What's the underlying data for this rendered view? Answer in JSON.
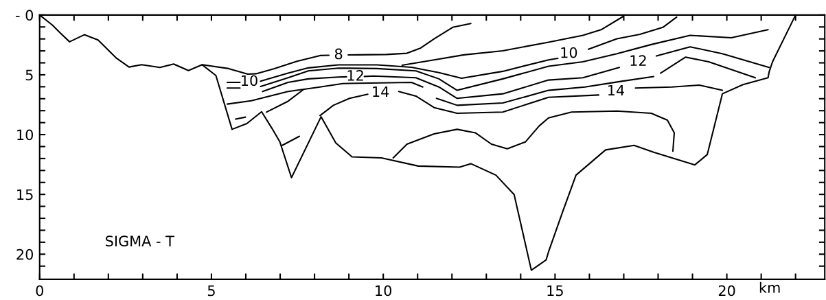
{
  "chart_data": {
    "type": "line",
    "xlabel": "km",
    "xlim": [
      0,
      22.85
    ],
    "ylim": [
      22.1,
      0
    ],
    "xticks": [
      0,
      {
        "value": 1,
        "label": null
      },
      {
        "value": 2,
        "label": null
      },
      {
        "value": 3,
        "label": null
      },
      {
        "value": 4,
        "label": null
      },
      5,
      {
        "value": 6,
        "label": null
      },
      {
        "value": 7,
        "label": null
      },
      {
        "value": 8,
        "label": null
      },
      {
        "value": 9,
        "label": null
      },
      10,
      {
        "value": 11,
        "label": null
      },
      {
        "value": 12,
        "label": null
      },
      {
        "value": 13,
        "label": null
      },
      {
        "value": 14,
        "label": null
      },
      15,
      {
        "value": 16,
        "label": null
      },
      {
        "value": 17,
        "label": null
      },
      {
        "value": 18,
        "label": null
      },
      {
        "value": 19,
        "label": null
      },
      20,
      {
        "value": 21,
        "label": null
      },
      {
        "value": 22,
        "label": null
      }
    ],
    "yticks": [
      {
        "value": 0,
        "label": "- 0"
      },
      {
        "value": 1,
        "label": null
      },
      {
        "value": 2,
        "label": null
      },
      {
        "value": 3,
        "label": null
      },
      {
        "value": 4,
        "label": null
      },
      5,
      {
        "value": 6,
        "label": null
      },
      {
        "value": 7,
        "label": null
      },
      {
        "value": 8,
        "label": null
      },
      {
        "value": 9,
        "label": null
      },
      10,
      {
        "value": 11,
        "label": null
      },
      {
        "value": 12,
        "label": null
      },
      {
        "value": 13,
        "label": null
      },
      {
        "value": 14,
        "label": null
      },
      15,
      {
        "value": 16,
        "label": null
      },
      {
        "value": 17,
        "label": null
      },
      {
        "value": 18,
        "label": null
      },
      {
        "value": 19,
        "label": null
      },
      20,
      {
        "value": 21,
        "label": null
      }
    ],
    "grid": false,
    "legend": false,
    "marker": "none",
    "line_style": "solid",
    "series": [
      {
        "color": "#000000",
        "x": [
          0,
          0.37,
          0.6,
          0.87,
          1.3,
          1.7,
          2.24,
          2.6,
          2.97,
          3.5,
          3.9,
          4.33,
          4.73,
          5.13,
          5.6,
          6.03,
          6.46,
          6.76,
          6.99,
          7.33,
          8.19,
          8.62,
          9.09,
          9.95,
          11.02,
          12.22,
          12.55,
          13.28,
          13.81,
          14.31,
          14.74,
          14.81,
          15.21,
          15.61,
          16.47,
          17.3,
          17.87,
          19.07,
          19.43,
          19.87,
          20.47,
          21.2,
          21.23,
          21.33,
          22.0
        ],
        "values": [
          0,
          0.84,
          1.5,
          2.24,
          1.65,
          2.09,
          3.62,
          4.35,
          4.16,
          4.39,
          4.1,
          4.64,
          4.16,
          5.06,
          9.56,
          9.08,
          8.09,
          9.47,
          10.6,
          13.6,
          8.51,
          10.7,
          11.86,
          11.95,
          12.63,
          12.72,
          12.43,
          13.39,
          15.02,
          21.34,
          20.48,
          19.81,
          16.55,
          13.39,
          11.28,
          10.9,
          11.48,
          12.53,
          11.67,
          6.59,
          5.82,
          5.25,
          4.77,
          3.91,
          0
        ]
      },
      {
        "name": "8",
        "color": "#000000",
        "x": [
          4.73,
          5.5,
          6.06,
          6.3,
          6.83,
          7.49,
          8.16,
          8.42,
          8.7,
          8.98,
          9.26,
          10.09,
          10.69,
          11.09,
          11.48,
          12.02,
          12.55
        ],
        "values": [
          4.16,
          4.48,
          4.95,
          4.91,
          4.48,
          3.87,
          3.39,
          3.37,
          null,
          3.34,
          3.33,
          3.3,
          3.2,
          2.76,
          2.0,
          1.03,
          0.71
        ]
      },
      {
        "color": "#000000",
        "x": [
          10.55,
          11.48,
          12.35,
          13.48,
          14.81,
          15.81,
          16.34,
          16.99
        ],
        "values": [
          4.2,
          3.75,
          3.33,
          2.99,
          2.28,
          1.7,
          1.23,
          0.11
        ]
      },
      {
        "name": "10",
        "color": "#000000",
        "x": [
          5.46,
          5.83,
          6.1,
          6.43,
          7.23,
          7.82,
          8.69,
          9.82,
          10.82,
          11.62,
          12.28,
          13.48,
          14.81,
          15.08,
          15.4,
          15.97,
          16.8,
          17.47,
          18.14,
          18.54
        ],
        "values": [
          5.63,
          5.63,
          null,
          5.54,
          4.86,
          4.42,
          4.17,
          4.17,
          4.37,
          4.82,
          5.29,
          4.71,
          3.75,
          3.63,
          null,
          2.86,
          1.99,
          1.61,
          1.03,
          0.17
        ]
      },
      {
        "color": "#000000",
        "x": [
          5.46,
          5.83,
          6.1,
          6.43,
          7.23,
          7.82,
          8.69,
          9.82,
          10.95,
          11.62,
          12.15,
          13.48,
          14.81,
          15.81,
          16.8,
          17.8,
          18.93,
          20.13,
          21.2
        ],
        "values": [
          6.11,
          6.11,
          null,
          5.98,
          5.25,
          4.67,
          4.44,
          4.48,
          4.67,
          5.34,
          6.3,
          5.34,
          4.29,
          3.91,
          3.24,
          2.47,
          1.7,
          1.9,
          1.23
        ]
      },
      {
        "name": "12",
        "color": "#000000",
        "x": [
          6.49,
          7.23,
          7.82,
          8.69,
          8.93,
          9.19,
          9.45,
          9.72,
          10.95,
          11.62,
          12.15,
          13.48,
          14.81,
          15.81,
          16.87,
          17.42,
          17.95,
          18.93,
          19.87,
          21.23
        ],
        "values": [
          6.4,
          5.63,
          5.34,
          5.19,
          5.17,
          null,
          5.14,
          5.1,
          5.25,
          6.02,
          6.97,
          6.59,
          5.44,
          5.25,
          4.39,
          null,
          3.43,
          2.66,
          3.24,
          4.39
        ]
      },
      {
        "color": "#000000",
        "x": [
          5.46,
          6.16,
          7.23,
          8.09,
          8.82,
          10.82,
          11.15,
          11.35,
          11.55,
          12.15,
          13.48,
          14.81,
          15.87,
          16.94,
          17.87,
          17.97,
          18.07,
          18.8,
          19.47,
          20.83
        ],
        "values": [
          7.45,
          7.17,
          6.4,
          6.05,
          5.73,
          5.63,
          6.02,
          null,
          6.97,
          7.55,
          7.36,
          6.3,
          6.02,
          5.54,
          5.15,
          null,
          4.86,
          3.52,
          3.91,
          5.25
        ]
      },
      {
        "color": "#000000",
        "x": [
          5.7,
          5.99,
          6.3,
          6.6,
          7.23,
          7.69,
          7.4,
          7.06,
          7.56
        ],
        "values": [
          8.7,
          8.54,
          null,
          8.12,
          7.21,
          6.21,
          null,
          10.9,
          10.14
        ]
      },
      {
        "name": "14",
        "color": "#000000",
        "x": [
          8.16,
          8.55,
          9.02,
          9.55,
          9.92,
          10.45,
          10.95,
          11.48,
          12.15,
          13.48,
          14.81,
          16.27,
          16.77,
          17.34,
          18.4,
          19.2,
          19.87
        ],
        "values": [
          8.41,
          7.55,
          6.97,
          6.63,
          null,
          6.4,
          6.78,
          7.74,
          8.22,
          8.12,
          6.88,
          6.69,
          null,
          6.11,
          6.02,
          5.86,
          6.3
        ]
      },
      {
        "color": "#000000",
        "x": [
          10.29,
          10.69,
          11.48,
          12.15,
          12.68,
          13.15,
          13.61,
          14.14,
          14.54,
          14.81,
          15.48,
          16.8,
          17.8,
          18.27,
          18.47,
          18.43
        ],
        "values": [
          11.95,
          10.8,
          9.94,
          9.56,
          9.85,
          10.8,
          11.19,
          10.61,
          9.27,
          8.6,
          8.12,
          8.03,
          8.22,
          8.79,
          9.85,
          11.38
        ]
      }
    ],
    "annotations": [
      "SIGMA - T"
    ]
  }
}
